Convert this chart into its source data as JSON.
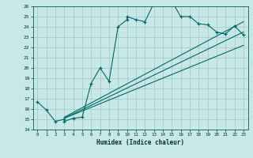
{
  "bg_color": "#c8e8e8",
  "grid_color": "#a0c8c0",
  "line_color": "#006868",
  "xlabel": "Humidex (Indice chaleur)",
  "xlim": [
    -0.5,
    23.5
  ],
  "ylim": [
    14,
    26
  ],
  "xticks": [
    0,
    1,
    2,
    3,
    4,
    5,
    6,
    7,
    8,
    9,
    10,
    11,
    12,
    13,
    14,
    15,
    16,
    17,
    18,
    19,
    20,
    21,
    22,
    23
  ],
  "yticks": [
    14,
    15,
    16,
    17,
    18,
    19,
    20,
    21,
    22,
    23,
    24,
    25,
    26
  ],
  "main_x": [
    0,
    1,
    2,
    3,
    3,
    4,
    5,
    6,
    7,
    8,
    9,
    10,
    10,
    11,
    12,
    13,
    14,
    14,
    15,
    16,
    17,
    18,
    19,
    20,
    21,
    22,
    23
  ],
  "main_y": [
    16.7,
    15.9,
    14.8,
    15.0,
    14.8,
    15.1,
    15.2,
    18.5,
    20.0,
    18.7,
    24.0,
    24.7,
    25.0,
    24.7,
    24.5,
    26.3,
    26.5,
    26.3,
    26.5,
    25.0,
    25.0,
    24.3,
    24.2,
    23.5,
    23.3,
    24.1,
    23.2
  ],
  "line1_x": [
    3,
    23
  ],
  "line1_y": [
    15.1,
    22.2
  ],
  "line2_x": [
    3,
    23
  ],
  "line2_y": [
    15.1,
    23.5
  ],
  "line3_x": [
    3,
    23
  ],
  "line3_y": [
    15.2,
    24.5
  ]
}
